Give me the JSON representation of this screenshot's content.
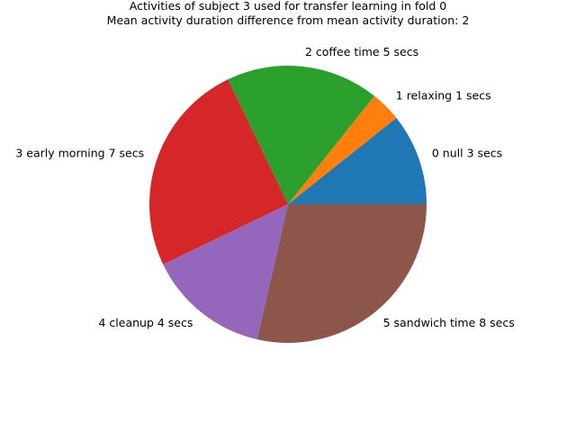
{
  "chart_data": {
    "type": "pie",
    "title_lines": [
      "Activities of subject 3 used for transfer learning in fold 0",
      "Mean activity duration difference from mean activity duration: 2"
    ],
    "labels": [
      "0 null 3 secs",
      "1 relaxing 1 secs",
      "2 coffee time 5 secs",
      "3 early morning 7 secs",
      "4 cleanup 4 secs",
      "5 sandwich time 8 secs"
    ],
    "values": [
      3,
      1,
      5,
      7,
      4,
      8
    ],
    "colors": [
      "#1f77b4",
      "#ff7f0e",
      "#2ca02c",
      "#d62728",
      "#9467bd",
      "#8c564b"
    ],
    "start_angle_deg": 0,
    "direction": "counterclockwise",
    "legend": "none"
  }
}
